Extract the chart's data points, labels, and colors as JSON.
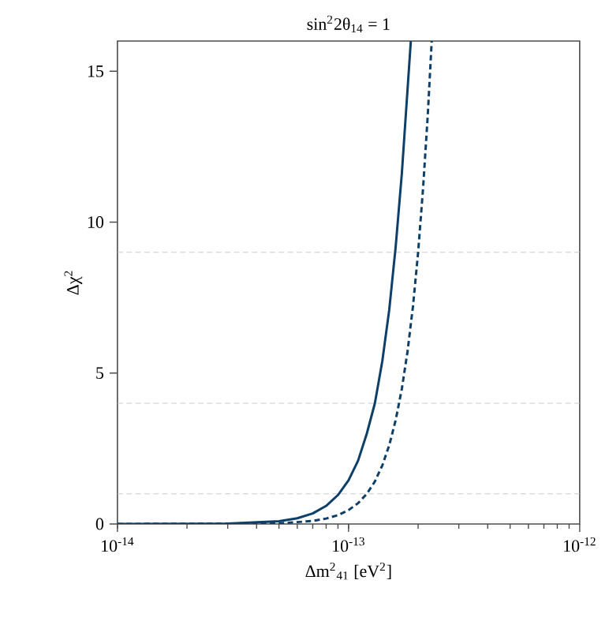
{
  "chart_data": {
    "type": "line",
    "title": "sin$^{2}$2θ$_{14}$ = 1",
    "xlabel": "Δm$^{2}$$_{41}$ [eV$^{2}$]",
    "ylabel": "Δχ$^{2}$",
    "log": "x",
    "grid": false,
    "marker": "none",
    "xlim": [
      1e-14,
      1e-12
    ],
    "ylim": [
      0,
      16
    ],
    "xticks": [
      {
        "value": 1e-14,
        "label": "10$^{-14}$"
      },
      {
        "value": 1e-13,
        "label": "10$^{-13}$"
      },
      {
        "value": 1e-12,
        "label": "10$^{-12}$"
      }
    ],
    "yticks": [
      0,
      5,
      10,
      15
    ],
    "ref_lines": [
      {
        "axis": "y",
        "value": 1,
        "color": "#cccccc",
        "line_style": "dashed"
      },
      {
        "axis": "y",
        "value": 4,
        "color": "#cccccc",
        "line_style": "dashed"
      },
      {
        "axis": "y",
        "value": 9,
        "color": "#cccccc",
        "line_style": "dashed"
      }
    ],
    "series": [
      {
        "color": "#0d3f68",
        "line_style": "solid",
        "x": [
          1e-14,
          3e-14,
          5e-14,
          6e-14,
          7e-14,
          8e-14,
          9e-14,
          1e-13,
          1.1e-13,
          1.2e-13,
          1.3e-13,
          1.4e-13,
          1.5e-13,
          1.6e-13,
          1.7e-13,
          1.8e-13,
          1.86e-13
        ],
        "values": [
          0,
          0.01,
          0.09,
          0.19,
          0.35,
          0.6,
          0.96,
          1.45,
          2.1,
          3.0,
          4.0,
          5.4,
          7.1,
          9.2,
          11.6,
          14.4,
          16
        ]
      },
      {
        "color": "#0d3f68",
        "line_style": "dashed",
        "x": [
          1e-14,
          5e-14,
          7e-14,
          8e-14,
          9e-14,
          1e-13,
          1.1e-13,
          1.2e-13,
          1.3e-13,
          1.4e-13,
          1.5e-13,
          1.6e-13,
          1.7e-13,
          1.8e-13,
          1.9e-13,
          2e-13,
          2.1e-13,
          2.2e-13,
          2.29e-13
        ],
        "values": [
          0,
          0.02,
          0.1,
          0.18,
          0.29,
          0.46,
          0.69,
          1.0,
          1.41,
          1.94,
          2.61,
          3.45,
          4.47,
          5.72,
          7.21,
          9.0,
          11.1,
          13.5,
          16
        ]
      }
    ]
  }
}
